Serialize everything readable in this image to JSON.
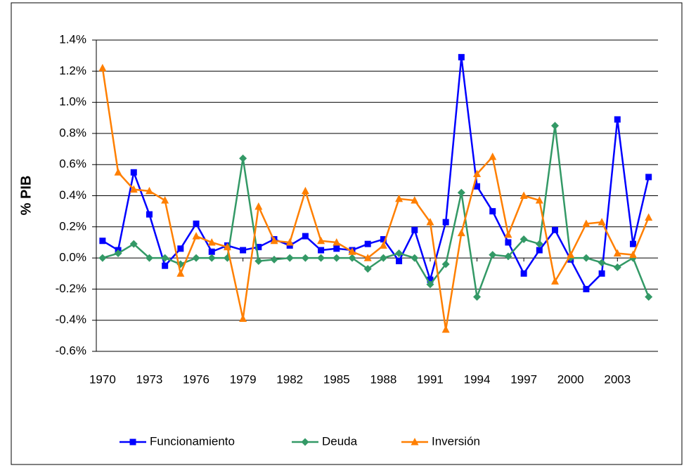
{
  "chart_data": {
    "type": "line",
    "y_label": "% PIB",
    "x": [
      1970,
      1971,
      1972,
      1973,
      1974,
      1975,
      1976,
      1977,
      1978,
      1979,
      1980,
      1981,
      1982,
      1983,
      1984,
      1985,
      1986,
      1987,
      1988,
      1989,
      1990,
      1991,
      1992,
      1993,
      1994,
      1995,
      1996,
      1997,
      1998,
      1999,
      2000,
      2001,
      2002,
      2003,
      2004,
      2005
    ],
    "xlim": [
      1969.6,
      2005.6
    ],
    "xticks": [
      1970,
      1973,
      1976,
      1979,
      1982,
      1985,
      1988,
      1991,
      1994,
      1997,
      2000,
      2003
    ],
    "ylim": [
      -0.6,
      1.4
    ],
    "yticks": [
      {
        "value": -0.6,
        "label": "-0.6%"
      },
      {
        "value": -0.4,
        "label": "-0.4%"
      },
      {
        "value": -0.2,
        "label": "-0.2%"
      },
      {
        "value": 0,
        "label": "0.0%"
      },
      {
        "value": 0.2,
        "label": "0.2%"
      },
      {
        "value": 0.4,
        "label": "0.4%"
      },
      {
        "value": 0.6,
        "label": "0.6%"
      },
      {
        "value": 0.8,
        "label": "0.8%"
      },
      {
        "value": 1.0,
        "label": "1.0%"
      },
      {
        "value": 1.2,
        "label": "1.2%"
      },
      {
        "value": 1.4,
        "label": "1.4%"
      }
    ],
    "grid": true,
    "legend": "bottom",
    "series": [
      {
        "name": "Funcionamiento",
        "color": "#0000ff",
        "marker": "square",
        "values": [
          0.11,
          0.05,
          0.55,
          0.28,
          -0.05,
          0.06,
          0.22,
          0.04,
          0.08,
          0.05,
          0.07,
          0.12,
          0.08,
          0.14,
          0.05,
          0.06,
          0.05,
          0.09,
          0.12,
          -0.02,
          0.18,
          -0.14,
          0.23,
          1.29,
          0.46,
          0.3,
          0.1,
          -0.1,
          0.05,
          0.18,
          -0.01,
          -0.2,
          -0.1,
          0.89,
          0.09,
          0.52
        ]
      },
      {
        "name": "Deuda",
        "color": "#339966",
        "marker": "diamond",
        "values": [
          0,
          0.03,
          0.09,
          0,
          0,
          -0.04,
          0,
          0,
          0,
          0.64,
          -0.02,
          -0.01,
          0,
          0,
          0,
          0,
          0,
          -0.07,
          0,
          0.03,
          0,
          -0.17,
          -0.04,
          0.42,
          -0.25,
          0.02,
          0.01,
          0.12,
          0.09,
          0.85,
          0,
          0,
          -0.03,
          -0.06,
          0,
          -0.25
        ]
      },
      {
        "name": "Inversión",
        "color": "#ff7f00",
        "marker": "triangle",
        "values": [
          1.22,
          0.55,
          0.44,
          0.43,
          0.37,
          -0.1,
          0.14,
          0.1,
          0.07,
          -0.39,
          0.33,
          0.11,
          0.1,
          0.43,
          0.11,
          0.1,
          0.04,
          0.0,
          0.08,
          0.38,
          0.37,
          0.23,
          -0.46,
          0.16,
          0.54,
          0.65,
          0.15,
          0.4,
          0.37,
          -0.15,
          0.02,
          0.22,
          0.23,
          0.03,
          0.02,
          0.26
        ]
      }
    ]
  }
}
